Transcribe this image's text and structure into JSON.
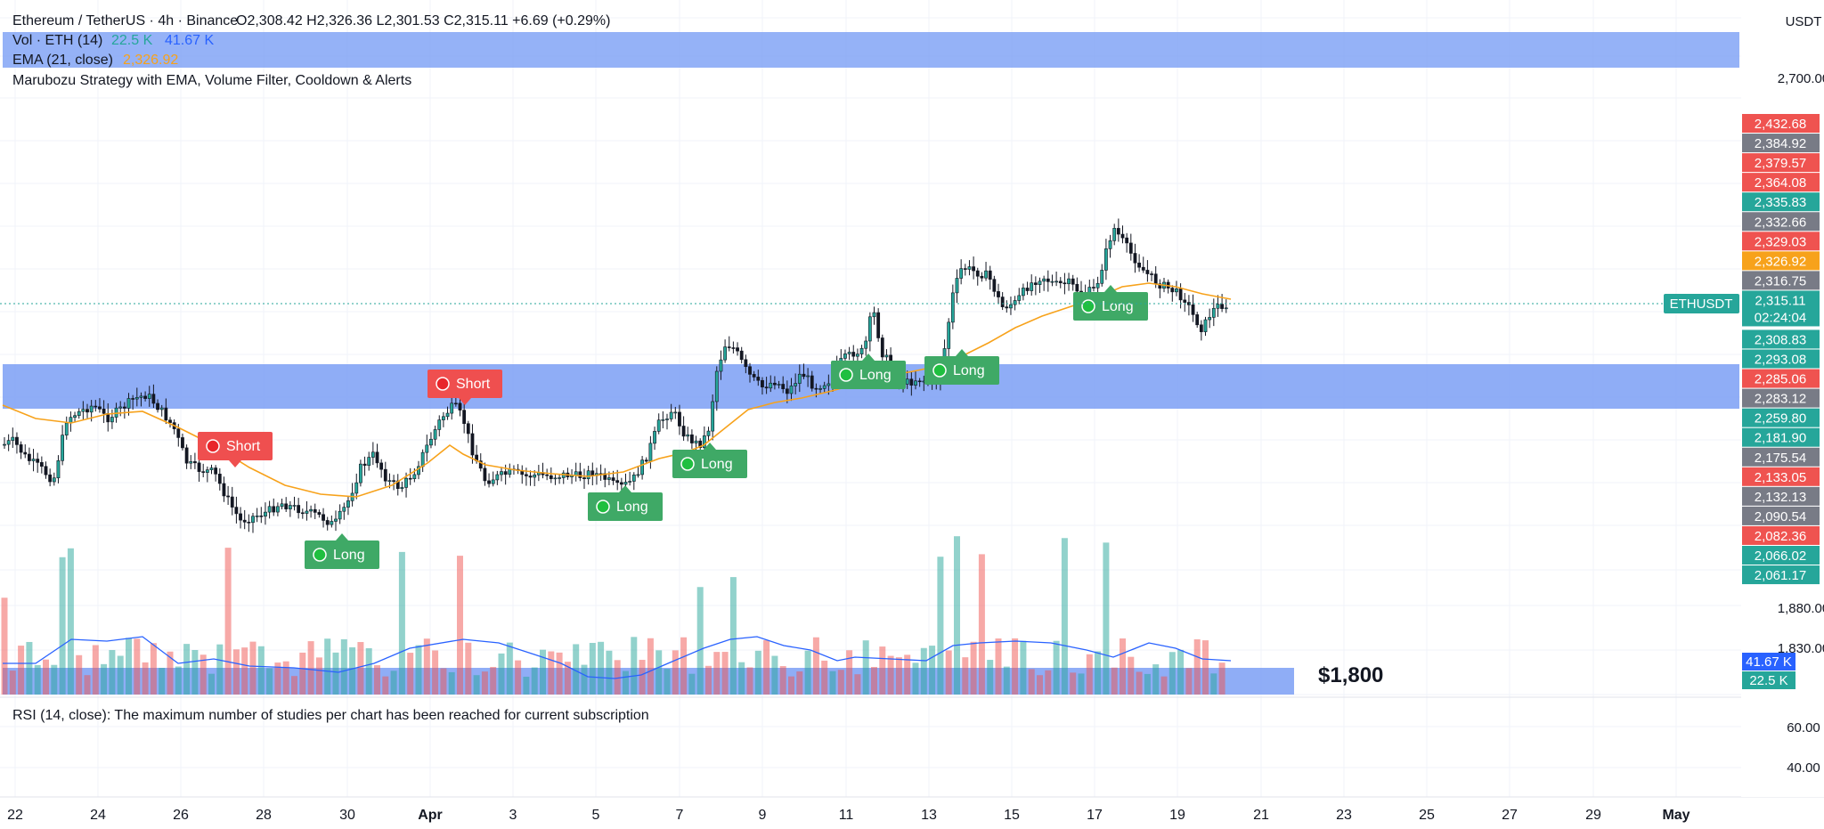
{
  "header": {
    "symbol_title": "Ethereum / TetherUS · 4h · Binance",
    "ohlc": "O2,308.42 H2,326.36 L2,301.53 C2,315.11 +6.69 (+0.29%)",
    "currency": "USDT"
  },
  "legends": {
    "vol_name": "Vol · ETH (14)",
    "vol_value_1": "22.5 K",
    "vol_value_2": "41.67 K",
    "ema_name": "EMA (21, close)",
    "ema_value": "2,326.92",
    "strategy": "Marubozu Strategy with EMA, Volume Filter, Cooldown & Alerts",
    "rsi_message": "RSI (14, close): The maximum number of studies per chart has been reached for current subscription"
  },
  "annotation": {
    "price_text": "$1,800"
  },
  "colors": {
    "up": "#26a69a",
    "down": "#ef5350",
    "ema": "#f7a21b",
    "vol_ma": "#2962ff",
    "highlight": "#7b9ff5",
    "long_label": "#3fa966",
    "short_label": "#ef4f4f",
    "grid": "#f0f3fa"
  },
  "price_axis": {
    "main_ticks": [
      "2,700.00",
      "1,880.00"
    ],
    "volume_tick": "1,830.00",
    "rsi_ticks": [
      "60.00",
      "40.00"
    ],
    "symbol_label": "ETHUSDT",
    "last_price": "2,315.11",
    "countdown": "02:24:04",
    "price_labels": [
      {
        "v": "2,432.68",
        "c": "#ef5350"
      },
      {
        "v": "2,384.92",
        "c": "#787b86"
      },
      {
        "v": "2,379.57",
        "c": "#ef5350"
      },
      {
        "v": "2,364.08",
        "c": "#ef5350"
      },
      {
        "v": "2,335.83",
        "c": "#26a69a"
      },
      {
        "v": "2,332.66",
        "c": "#787b86"
      },
      {
        "v": "2,329.03",
        "c": "#ef5350"
      },
      {
        "v": "2,326.92",
        "c": "#f7a21b"
      },
      {
        "v": "2,316.75",
        "c": "#787b86"
      },
      {
        "v": "2,308.83",
        "c": "#26a69a"
      },
      {
        "v": "2,293.08",
        "c": "#26a69a"
      },
      {
        "v": "2,285.06",
        "c": "#ef5350"
      },
      {
        "v": "2,283.12",
        "c": "#787b86"
      },
      {
        "v": "2,259.80",
        "c": "#26a69a"
      },
      {
        "v": "2,181.90",
        "c": "#26a69a"
      },
      {
        "v": "2,175.54",
        "c": "#787b86"
      },
      {
        "v": "2,133.05",
        "c": "#ef5350"
      },
      {
        "v": "2,132.13",
        "c": "#787b86"
      },
      {
        "v": "2,090.54",
        "c": "#787b86"
      },
      {
        "v": "2,082.36",
        "c": "#ef5350"
      },
      {
        "v": "2,066.02",
        "c": "#26a69a"
      },
      {
        "v": "2,061.17",
        "c": "#26a69a"
      }
    ],
    "vol_labels": [
      {
        "v": "41.67 K",
        "c": "#2962ff"
      },
      {
        "v": "22.5 K",
        "c": "#26a69a"
      }
    ]
  },
  "time_axis": [
    "22",
    "24",
    "26",
    "28",
    "30",
    "Apr",
    "3",
    "5",
    "7",
    "9",
    "11",
    "13",
    "15",
    "17",
    "19",
    "21",
    "23",
    "25",
    "27",
    "29",
    "May"
  ],
  "signals": [
    {
      "type": "Short",
      "text": "Short"
    },
    {
      "type": "Short",
      "text": "Short"
    },
    {
      "type": "Long",
      "text": "Long"
    },
    {
      "type": "Long",
      "text": "Long"
    },
    {
      "type": "Long",
      "text": "Long"
    },
    {
      "type": "Long",
      "text": "Long"
    },
    {
      "type": "Long",
      "text": "Long"
    },
    {
      "type": "Long",
      "text": "Long"
    }
  ],
  "chart_data": {
    "type": "candlestick",
    "symbol": "ETHUSDT",
    "interval": "4h",
    "exchange": "Binance",
    "last_close": 2315.11,
    "ema_last": 2326.92,
    "x_range": [
      "Mar 22",
      "May"
    ],
    "volume_ma_last": 41670,
    "volume_last": 22500
  }
}
